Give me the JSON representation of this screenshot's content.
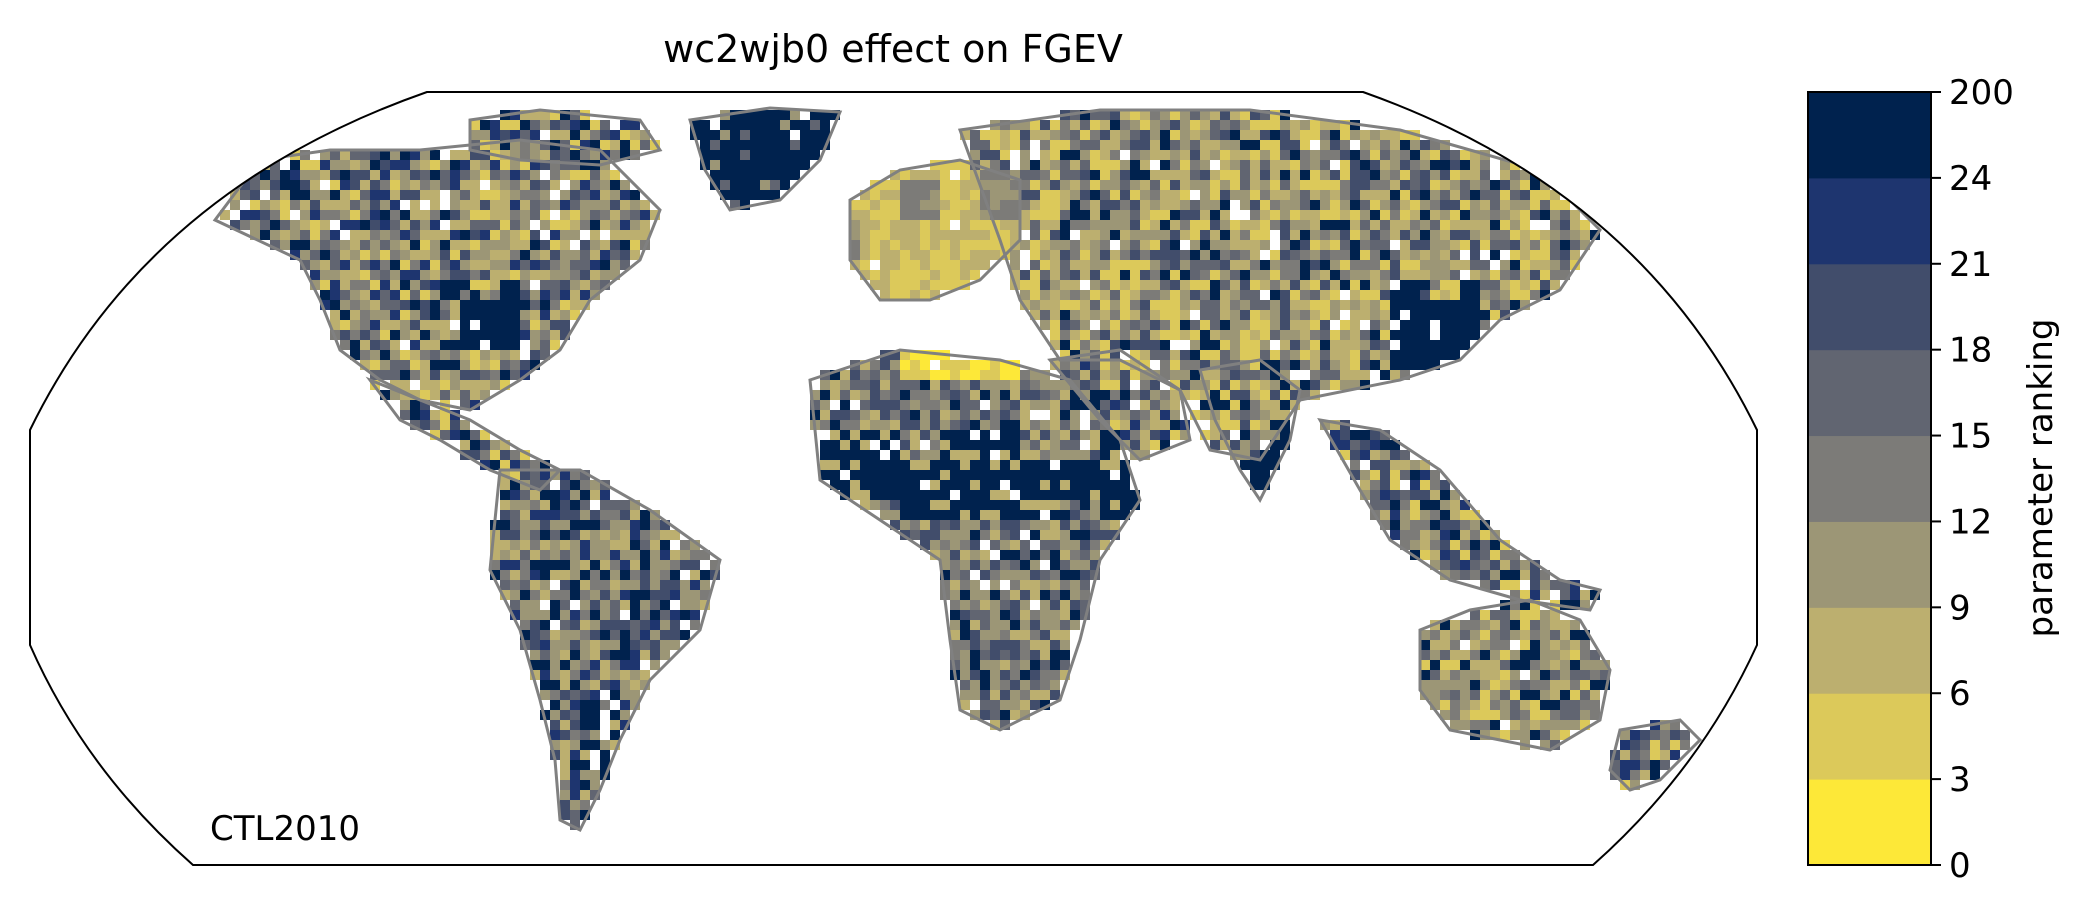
{
  "title": "wc2wjb0 effect on FGEV",
  "annotation": "CTL2010",
  "projection": "robinson-like world map",
  "colorbar": {
    "label": "parameter ranking",
    "ticks": [
      "0",
      "3",
      "6",
      "9",
      "12",
      "15",
      "18",
      "21",
      "24",
      "200"
    ],
    "colors": [
      "#fde838",
      "#dcc95a",
      "#bcaf6f",
      "#9c9676",
      "#7c7b78",
      "#616571",
      "#414d6b",
      "#1e356f",
      "#00224e"
    ]
  },
  "coastline_color": "#808080"
}
